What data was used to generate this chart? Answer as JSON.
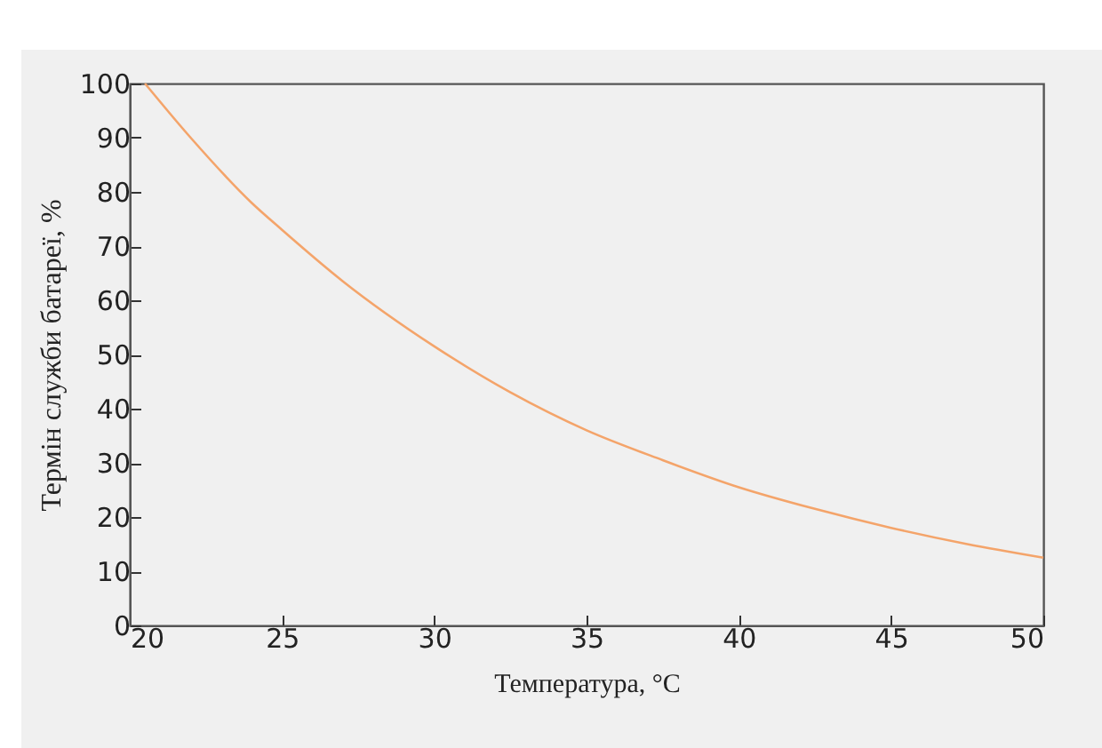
{
  "chart_data": {
    "type": "line",
    "xlabel": "Температура, °C",
    "ylabel": "Термін служби батареї, %",
    "x": [
      20.5,
      22,
      24,
      25,
      27,
      30,
      32.5,
      35,
      37.5,
      40,
      42.5,
      45,
      47.5,
      50
    ],
    "series": [
      {
        "color": "#f4a46a",
        "values": [
          100,
          90,
          78,
          73,
          63.5,
          51.5,
          43,
          36,
          30.5,
          25.5,
          21.5,
          18,
          15,
          12.5
        ]
      }
    ],
    "xlim": [
      20,
      50
    ],
    "xticks": [
      20,
      25,
      30,
      35,
      40,
      45,
      50
    ],
    "ylim": [
      0,
      100
    ],
    "yticks": [
      0,
      10,
      20,
      30,
      40,
      50,
      60,
      70,
      80,
      90,
      100
    ],
    "grid": false,
    "legend": false,
    "marker": "none",
    "line_style": "solid"
  }
}
